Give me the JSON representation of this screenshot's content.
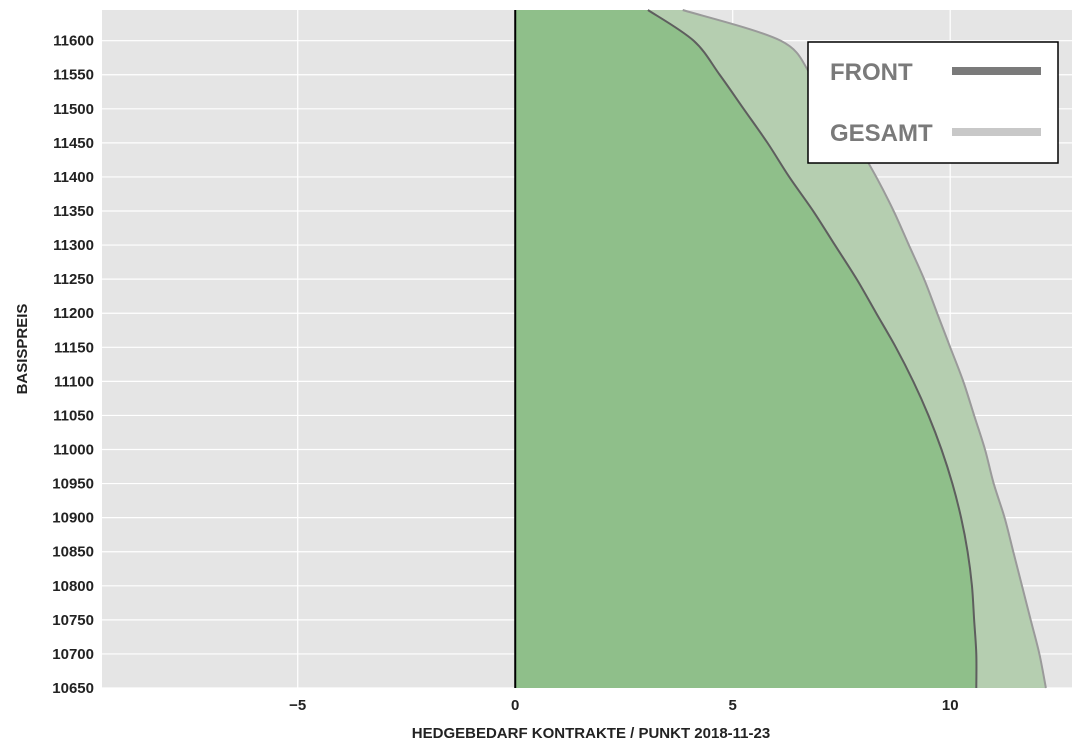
{
  "chart_data": {
    "type": "area",
    "xlabel": "HEDGEBEDARF KONTRAKTE / PUNKT 2018-11-23",
    "ylabel": "BASISPREIS",
    "xlim": [
      -9.5,
      12.8
    ],
    "ylim": [
      10650,
      11645
    ],
    "xticks": [
      -5,
      0,
      5,
      10
    ],
    "xtick_labels": [
      "−5",
      "0",
      "5",
      "10"
    ],
    "yticks": [
      10650,
      10700,
      10750,
      10800,
      10850,
      10900,
      10950,
      11000,
      11050,
      11100,
      11150,
      11200,
      11250,
      11300,
      11350,
      11400,
      11450,
      11500,
      11550,
      11600
    ],
    "grid": true,
    "legend_position": "top-right",
    "fill_color": "#7cb97c",
    "zero_line_color": "#000000",
    "series": [
      {
        "name": "GESAMT",
        "color": "#c8c8c8",
        "line_color": "#9a9a9a",
        "fill_color": "#b5ceb0",
        "points": [
          {
            "y": 10650,
            "x": 12.2
          },
          {
            "y": 10700,
            "x": 12.05
          },
          {
            "y": 10750,
            "x": 11.85
          },
          {
            "y": 10800,
            "x": 11.65
          },
          {
            "y": 10850,
            "x": 11.45
          },
          {
            "y": 10900,
            "x": 11.25
          },
          {
            "y": 10950,
            "x": 11.0
          },
          {
            "y": 11000,
            "x": 10.8
          },
          {
            "y": 11050,
            "x": 10.55
          },
          {
            "y": 11100,
            "x": 10.3
          },
          {
            "y": 11150,
            "x": 10.0
          },
          {
            "y": 11200,
            "x": 9.7
          },
          {
            "y": 11250,
            "x": 9.4
          },
          {
            "y": 11300,
            "x": 9.05
          },
          {
            "y": 11350,
            "x": 8.7
          },
          {
            "y": 11400,
            "x": 8.3
          },
          {
            "y": 11450,
            "x": 7.85
          },
          {
            "y": 11500,
            "x": 7.35
          },
          {
            "y": 11550,
            "x": 6.8
          },
          {
            "y": 11600,
            "x": 6.1
          },
          {
            "y": 11645,
            "x": 3.85
          }
        ]
      },
      {
        "name": "FRONT",
        "color": "#7a7a7a",
        "line_color": "#5e5e5e",
        "fill_color": "#8fbf8a",
        "points": [
          {
            "y": 10650,
            "x": 10.6
          },
          {
            "y": 10700,
            "x": 10.6
          },
          {
            "y": 10750,
            "x": 10.55
          },
          {
            "y": 10800,
            "x": 10.5
          },
          {
            "y": 10850,
            "x": 10.4
          },
          {
            "y": 10900,
            "x": 10.25
          },
          {
            "y": 10950,
            "x": 10.05
          },
          {
            "y": 11000,
            "x": 9.8
          },
          {
            "y": 11050,
            "x": 9.5
          },
          {
            "y": 11100,
            "x": 9.15
          },
          {
            "y": 11150,
            "x": 8.75
          },
          {
            "y": 11200,
            "x": 8.3
          },
          {
            "y": 11250,
            "x": 7.85
          },
          {
            "y": 11300,
            "x": 7.35
          },
          {
            "y": 11350,
            "x": 6.85
          },
          {
            "y": 11400,
            "x": 6.3
          },
          {
            "y": 11450,
            "x": 5.8
          },
          {
            "y": 11500,
            "x": 5.25
          },
          {
            "y": 11550,
            "x": 4.7
          },
          {
            "y": 11600,
            "x": 4.1
          },
          {
            "y": 11645,
            "x": 3.05
          }
        ]
      }
    ]
  }
}
